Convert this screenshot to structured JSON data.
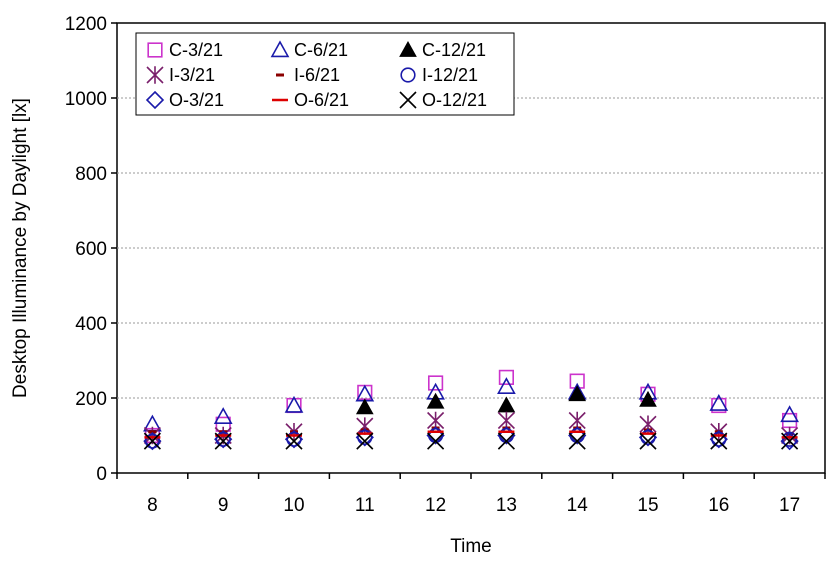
{
  "chart_data": {
    "type": "scatter",
    "title": "",
    "xlabel": "Time",
    "ylabel": "Desktop Illuminance by Daylight [lx]",
    "x": [
      8,
      9,
      10,
      11,
      12,
      13,
      14,
      15,
      16,
      17
    ],
    "x_tick_labels": [
      "8",
      "9",
      "10",
      "11",
      "12",
      "13",
      "14",
      "15",
      "16",
      "17"
    ],
    "ylim": [
      0,
      1200
    ],
    "y_ticks": [
      0,
      200,
      400,
      600,
      800,
      1000,
      1200
    ],
    "y_tick_labels": [
      "0",
      "200",
      "400",
      "600",
      "800",
      "1000",
      "1200"
    ],
    "grid": "horizontal dotted",
    "legend_position": "top-left",
    "series": [
      {
        "name": "C-3/21",
        "marker": "square-open",
        "color": "#cc33cc",
        "values": [
          100,
          130,
          180,
          215,
          240,
          255,
          245,
          210,
          180,
          140
        ]
      },
      {
        "name": "C-6/21",
        "marker": "triangle-open",
        "color": "#1a1aaa",
        "values": [
          130,
          150,
          180,
          210,
          215,
          230,
          215,
          215,
          185,
          155
        ]
      },
      {
        "name": "C-12/21",
        "marker": "triangle-filled",
        "color": "#000000",
        "values": [
          null,
          null,
          null,
          175,
          190,
          180,
          210,
          195,
          null,
          null
        ]
      },
      {
        "name": "I-3/21",
        "marker": "asterisk",
        "color": "#7a1f6b",
        "values": [
          100,
          100,
          110,
          125,
          140,
          140,
          140,
          130,
          110,
          100
        ]
      },
      {
        "name": "I-6/21",
        "marker": "dash-short",
        "color": "#8b0000",
        "values": [
          110,
          110,
          110,
          115,
          120,
          120,
          120,
          115,
          110,
          105
        ]
      },
      {
        "name": "I-12/21",
        "marker": "circle-open",
        "color": "#1a1aaa",
        "values": [
          85,
          90,
          90,
          95,
          100,
          100,
          100,
          95,
          90,
          90
        ]
      },
      {
        "name": "O-3/21",
        "marker": "diamond-open",
        "color": "#1a1aaa",
        "values": [
          85,
          90,
          90,
          95,
          100,
          100,
          100,
          95,
          90,
          85
        ]
      },
      {
        "name": "O-6/21",
        "marker": "dash-long",
        "color": "#dd0000",
        "values": [
          95,
          100,
          100,
          105,
          110,
          110,
          110,
          105,
          100,
          95
        ]
      },
      {
        "name": "O-12/21",
        "marker": "x-cross",
        "color": "#000000",
        "values": [
          85,
          85,
          85,
          85,
          85,
          85,
          85,
          85,
          85,
          85
        ]
      }
    ]
  }
}
